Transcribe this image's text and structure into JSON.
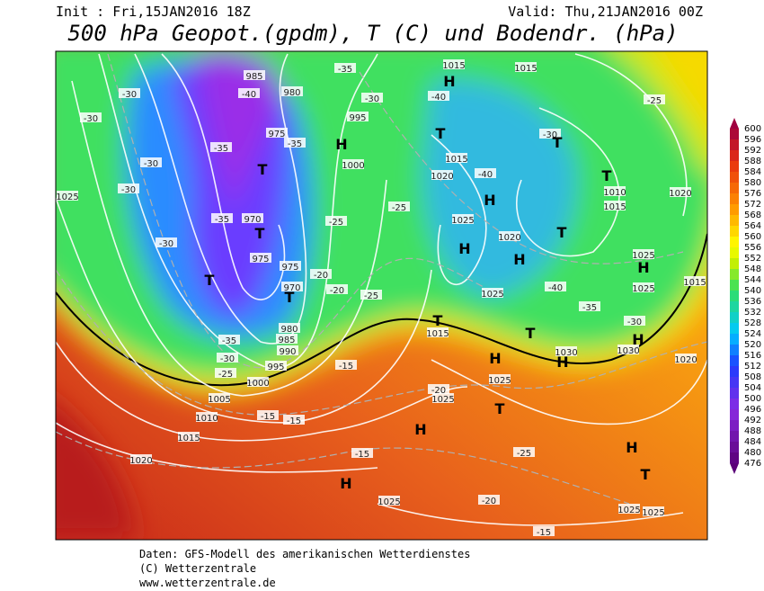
{
  "header": {
    "init": "Init : Fri,15JAN2016 18Z",
    "valid": "Valid: Thu,21JAN2016 00Z",
    "title": "500 hPa Geopot.(gpdm), T (C) und Bodendr. (hPa)"
  },
  "colorbar": {
    "ticks": [
      600,
      596,
      592,
      588,
      584,
      580,
      576,
      572,
      568,
      564,
      560,
      556,
      552,
      548,
      544,
      540,
      536,
      532,
      528,
      524,
      520,
      516,
      512,
      508,
      504,
      500,
      496,
      492,
      488,
      484,
      480,
      476
    ]
  },
  "map": {
    "labels": [
      "985",
      "980",
      "995",
      "975",
      "1000",
      "970",
      "975",
      "975",
      "970",
      "980",
      "985",
      "990",
      "995",
      "1000",
      "1005",
      "1010",
      "1015",
      "1020",
      "1025",
      "1015",
      "1015",
      "1015",
      "1020",
      "1010",
      "1015",
      "1020",
      "1025",
      "1020",
      "1025",
      "1025",
      "1025",
      "1015",
      "1015",
      "1030",
      "1030",
      "1020",
      "1025",
      "1025",
      "1025",
      "1025",
      "1025",
      "-30",
      "-30",
      "-30",
      "-30",
      "-30",
      "-35",
      "-40",
      "-35",
      "-35",
      "-30",
      "-40",
      "-30",
      "-25",
      "-35",
      "-25",
      "-25",
      "-40",
      "-20",
      "-20",
      "-25",
      "-40",
      "-35",
      "-30",
      "-35",
      "-30",
      "-25",
      "-15",
      "-15",
      "-15",
      "-20",
      "-15",
      "-25",
      "-20",
      "-15",
      "H",
      "H",
      "T",
      "T",
      "T",
      "T",
      "H",
      "H",
      "H",
      "T",
      "T",
      "T",
      "T",
      "H",
      "H",
      "H",
      "T",
      "H",
      "H",
      "H",
      "T",
      "H",
      "T",
      "T"
    ]
  },
  "footer": {
    "line1": "Daten: GFS-Modell des amerikanischen Wetterdienstes",
    "line2": "(C) Wetterzentrale",
    "line3": "www.wetterzentrale.de"
  }
}
